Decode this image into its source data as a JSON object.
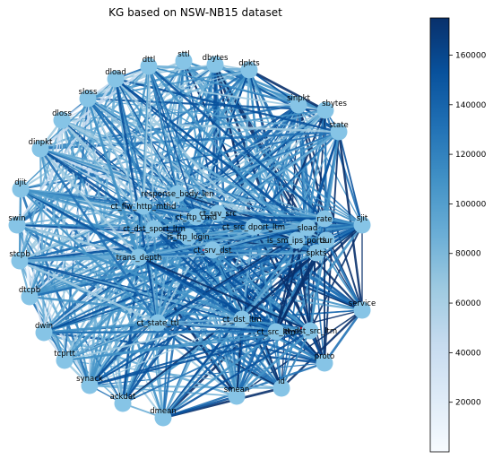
{
  "figure": {
    "title": "KG based on NSW-NB15 dataset"
  },
  "graph": {
    "node_color": "#86c4e6",
    "edge_palette": [
      "#f7fbff",
      "#c6dbef",
      "#9ecae1",
      "#6baed6",
      "#4292c6",
      "#2171b5",
      "#08519c",
      "#08306b"
    ],
    "highlight_color": "#c0182b",
    "nodes": [
      {
        "id": "sttl",
        "label": "sttl"
      },
      {
        "id": "dbytes",
        "label": "dbytes"
      },
      {
        "id": "dpkts",
        "label": "dpkts"
      },
      {
        "id": "sinpkt",
        "label": "sinpkt"
      },
      {
        "id": "sbytes",
        "label": "sbytes"
      },
      {
        "id": "state",
        "label": "state"
      },
      {
        "id": "sjit",
        "label": "sjit"
      },
      {
        "id": "service",
        "label": "service"
      },
      {
        "id": "proto",
        "label": "proto"
      },
      {
        "id": "id",
        "label": "id"
      },
      {
        "id": "smean",
        "label": "smean"
      },
      {
        "id": "dmean",
        "label": "dmean"
      },
      {
        "id": "ackdat",
        "label": "ackdat"
      },
      {
        "id": "synack",
        "label": "synack"
      },
      {
        "id": "tcprtt",
        "label": "tcprtt"
      },
      {
        "id": "dwin",
        "label": "dwin"
      },
      {
        "id": "dtcpb",
        "label": "dtcpb"
      },
      {
        "id": "stcpb",
        "label": "stcpb"
      },
      {
        "id": "swin",
        "label": "swin"
      },
      {
        "id": "djit",
        "label": "djit"
      },
      {
        "id": "dinpkt",
        "label": "dinpkt"
      },
      {
        "id": "dloss",
        "label": "dloss"
      },
      {
        "id": "sloss",
        "label": "sloss"
      },
      {
        "id": "dload",
        "label": "dload"
      },
      {
        "id": "dttl",
        "label": "dttl"
      },
      {
        "id": "response_body_len",
        "label": "response_body_len"
      },
      {
        "id": "ct_flw_http_mthd",
        "label": "ct_flw_http_mthd"
      },
      {
        "id": "ct_ftp_cmd",
        "label": "ct_ftp_cmd"
      },
      {
        "id": "ct_srv_src",
        "label": "ct_srv_src"
      },
      {
        "id": "ct_src_dport_ltm",
        "label": "ct_src_dport_ltm"
      },
      {
        "id": "ct_dst_sport_ltm",
        "label": "ct_dst_sport_ltm"
      },
      {
        "id": "is_ftp_login",
        "label": "is_ftp_login"
      },
      {
        "id": "ct_srv_dst",
        "label": "ct_srv_dst"
      },
      {
        "id": "sload",
        "label": "sload"
      },
      {
        "id": "rate",
        "label": "rate"
      },
      {
        "id": "is_sm_ips_ports",
        "label": "is_sm_ips_ports"
      },
      {
        "id": "dur",
        "label": "dur"
      },
      {
        "id": "spkts",
        "label": "spkts"
      },
      {
        "id": "trans_depth",
        "label": "trans_depth"
      },
      {
        "id": "ct_state_ttl",
        "label": "ct_state_ttl"
      },
      {
        "id": "ct_dst_ltm",
        "label": "ct_dst_ltm"
      },
      {
        "id": "ct_src_ltm",
        "label": "ct_src_ltm"
      },
      {
        "id": "ct_dst_src_ltm",
        "label": "ct_dst_src_ltm"
      }
    ]
  },
  "colorbar": {
    "min": 0,
    "max": 175000,
    "ticks": [
      20000,
      40000,
      60000,
      80000,
      100000,
      120000,
      140000,
      160000
    ],
    "tick_labels": [
      "20000",
      "40000",
      "60000",
      "80000",
      "100000",
      "120000",
      "140000",
      "160000"
    ],
    "color_low": "#f7fbff",
    "color_high": "#08306b"
  }
}
